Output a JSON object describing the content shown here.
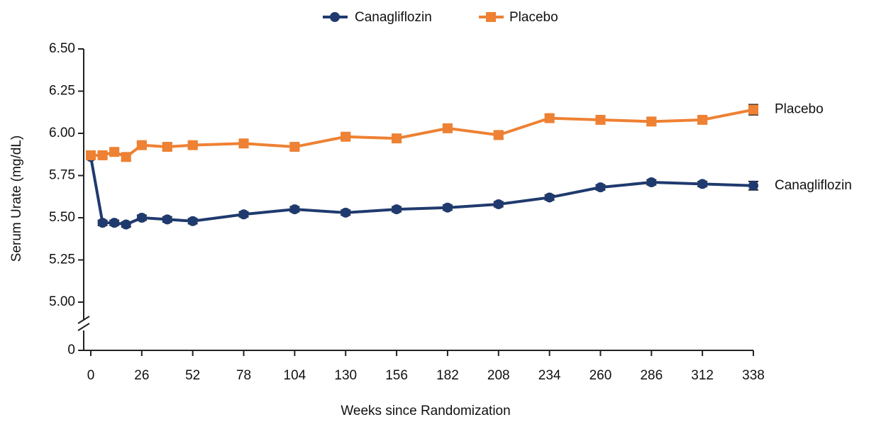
{
  "chart_data": {
    "type": "line",
    "xlabel": "Weeks since Randomization",
    "ylabel": "Serum Urate (mg/dL)",
    "x": [
      0,
      6,
      12,
      18,
      26,
      39,
      52,
      78,
      104,
      130,
      156,
      182,
      208,
      234,
      260,
      286,
      312,
      338
    ],
    "series": [
      {
        "name": "Canagliflozin",
        "color": "#1f3a6e",
        "marker": "circle",
        "values": [
          5.86,
          5.47,
          5.47,
          5.46,
          5.5,
          5.49,
          5.48,
          5.52,
          5.55,
          5.53,
          5.55,
          5.56,
          5.58,
          5.62,
          5.68,
          5.71,
          5.7,
          5.69
        ],
        "errors": [
          0.01,
          0.015,
          0.015,
          0.015,
          0.015,
          0.015,
          0.015,
          0.015,
          0.015,
          0.015,
          0.015,
          0.015,
          0.015,
          0.015,
          0.015,
          0.015,
          0.015,
          0.025
        ]
      },
      {
        "name": "Placebo",
        "color": "#ee8133",
        "marker": "square",
        "values": [
          5.87,
          5.87,
          5.89,
          5.86,
          5.93,
          5.92,
          5.93,
          5.94,
          5.92,
          5.98,
          5.97,
          6.03,
          5.99,
          6.09,
          6.08,
          6.07,
          6.08,
          6.14
        ],
        "errors": [
          0.01,
          0.015,
          0.015,
          0.02,
          0.015,
          0.02,
          0.015,
          0.015,
          0.015,
          0.015,
          0.02,
          0.02,
          0.02,
          0.02,
          0.02,
          0.02,
          0.02,
          0.03
        ]
      }
    ],
    "xlim": [
      0,
      338
    ],
    "xticks": [
      0,
      26,
      52,
      78,
      104,
      130,
      156,
      182,
      208,
      234,
      260,
      286,
      312,
      338
    ],
    "ylim": [
      0,
      6.5
    ],
    "y_axis_break": [
      0,
      5
    ],
    "yticks": [
      0,
      {
        "value": 5,
        "label": "5.00"
      },
      5.25,
      {
        "value": 5.5,
        "label": "5.50"
      },
      5.75,
      {
        "value": 6,
        "label": "6.00"
      },
      6.25,
      {
        "value": 6.5,
        "label": "6.50"
      }
    ],
    "legend": "top"
  }
}
